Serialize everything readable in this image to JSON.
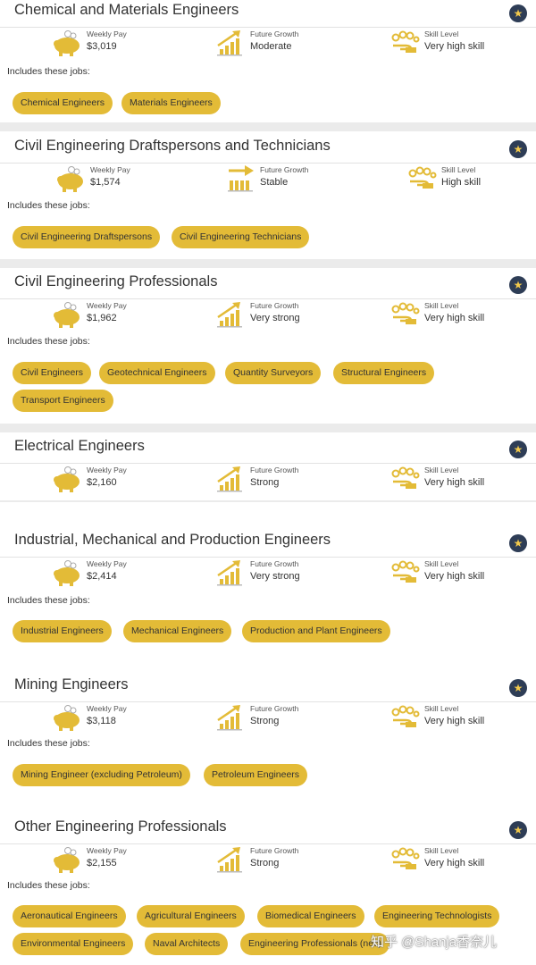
{
  "labels": {
    "pay": "Weekly Pay",
    "growth": "Future Growth",
    "skill": "Skill Level",
    "includes": "Includes these jobs:"
  },
  "colors": {
    "accent": "#e3bb37",
    "star_bg": "#2e3d56"
  },
  "icons": {
    "pay": "piggy-bank-icon",
    "growth_up": "growth-chart-icon",
    "growth_stable": "stable-arrow-icon",
    "skill": "gears-hand-icon",
    "favourite": "star-icon"
  },
  "cards": [
    {
      "title": "Chemical and Materials Engineers",
      "pay": "$3,019",
      "growth": "Moderate",
      "skill": "Very high skill",
      "jobs": [
        "Chemical Engineers",
        "Materials Engineers"
      ]
    },
    {
      "title": "Civil Engineering Draftspersons and Technicians",
      "pay": "$1,574",
      "growth": "Stable",
      "skill": "High skill",
      "jobs": [
        "Civil Engineering Draftspersons",
        "Civil Engineering Technicians"
      ]
    },
    {
      "title": "Civil Engineering Professionals",
      "pay": "$1,962",
      "growth": "Very strong",
      "skill": "Very high skill",
      "jobs": [
        "Civil Engineers",
        "Geotechnical Engineers",
        "Quantity Surveyors",
        "Structural Engineers",
        "Transport Engineers"
      ]
    },
    {
      "title": "Electrical Engineers",
      "pay": "$2,160",
      "growth": "Strong",
      "skill": "Very high skill",
      "jobs": []
    },
    {
      "title": "Industrial, Mechanical and Production Engineers",
      "pay": "$2,414",
      "growth": "Very strong",
      "skill": "Very high skill",
      "jobs": [
        "Industrial Engineers",
        "Mechanical Engineers",
        "Production and Plant Engineers"
      ]
    },
    {
      "title": "Mining Engineers",
      "pay": "$3,118",
      "growth": "Strong",
      "skill": "Very high skill",
      "jobs": [
        "Mining Engineer (excluding Petroleum)",
        "Petroleum Engineers"
      ]
    },
    {
      "title": "Other Engineering Professionals",
      "pay": "$2,155",
      "growth": "Strong",
      "skill": "Very high skill",
      "jobs": [
        "Aeronautical Engineers",
        "Agricultural Engineers",
        "Biomedical Engineers",
        "Engineering Technologists",
        "Environmental Engineers",
        "Naval Architects",
        "Engineering Professionals (nec)"
      ]
    }
  ],
  "watermark": "知乎 @Shanja香奈儿"
}
